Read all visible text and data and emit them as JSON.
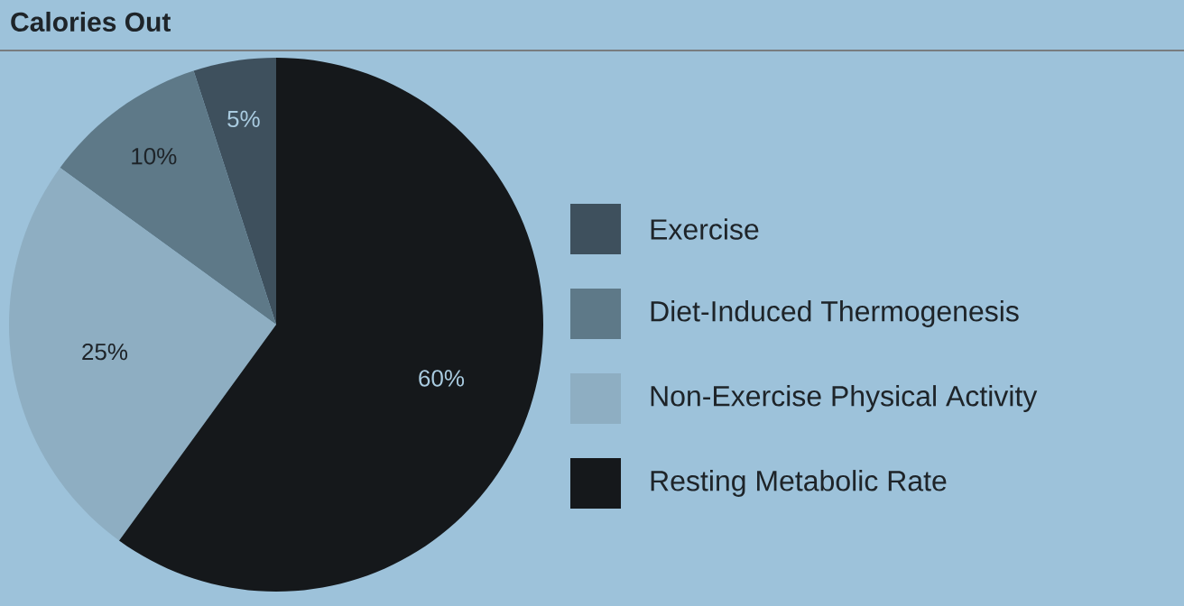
{
  "chart_data": {
    "type": "pie",
    "title": "Calories Out",
    "categories": [
      "Exercise",
      "Diet-Induced Thermogenesis",
      "Non-Exercise Physical Activity",
      "Resting Metabolic Rate"
    ],
    "values": [
      5,
      10,
      25,
      60
    ],
    "value_labels": [
      "5%",
      "10%",
      "25%",
      "60%"
    ],
    "colors": [
      "#3e505d",
      "#5e7988",
      "#8eaec2",
      "#15181b"
    ],
    "legend": "right"
  }
}
